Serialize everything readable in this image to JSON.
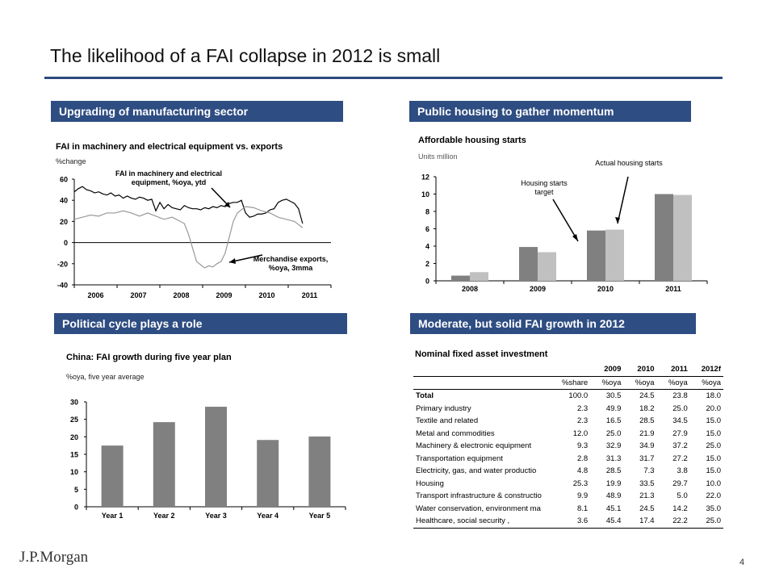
{
  "page": {
    "title": "The likelihood of a FAI collapse in 2012 is small",
    "logo": "J.P.Morgan",
    "page_number": "4"
  },
  "panels": {
    "p1": {
      "banner": "Upgrading of manufacturing sector",
      "title": "FAI in machinery and electrical equipment vs. exports",
      "subtitle": "%change",
      "annotation1_line1": "FAI in machinery and electrical",
      "annotation1_line2": "equipment, %oya, ytd",
      "annotation2_line1": "Merchandise exports,",
      "annotation2_line2": "%oya, 3mma"
    },
    "p2": {
      "banner": "Public housing to gather momentum",
      "title": "Affordable housing starts",
      "subtitle": "Units million",
      "annotation1_line1": "Housing starts",
      "annotation1_line2": "target",
      "annotation2": "Actual housing starts"
    },
    "p3": {
      "banner": "Political cycle plays a role",
      "title": "China:  FAI growth during five year plan",
      "subtitle": "%oya, five year average"
    },
    "p4": {
      "banner": "Moderate, but solid FAI growth in 2012",
      "title": "Nominal fixed asset investment"
    }
  },
  "colors": {
    "banner": "#2e4d82",
    "title_rule": "#2b4a80",
    "dark_bar": "#808080",
    "light_bar": "#c0c0c0",
    "line_dark": "#000000",
    "line_light": "#999999"
  },
  "chart_data": [
    {
      "id": "fai_vs_exports",
      "type": "line",
      "title": "FAI in machinery and electrical equipment vs. exports",
      "ylabel": "%change",
      "ylim": [
        -40,
        60
      ],
      "yticks": [
        "60",
        "40",
        "20",
        "0",
        "-20",
        "-40"
      ],
      "xlim": [
        2006,
        2012
      ],
      "xticks": [
        "2006",
        "2007",
        "2008",
        "2009",
        "2010",
        "2011"
      ],
      "series": [
        {
          "name": "FAI in machinery and electrical equipment, %oya, ytd",
          "x": [
            2006.0,
            2006.1,
            2006.2,
            2006.3,
            2006.4,
            2006.5,
            2006.6,
            2006.7,
            2006.8,
            2006.9,
            2007.0,
            2007.1,
            2007.2,
            2007.3,
            2007.4,
            2007.5,
            2007.6,
            2007.7,
            2007.8,
            2007.9,
            2008.0,
            2008.1,
            2008.2,
            2008.3,
            2008.4,
            2008.5,
            2008.6,
            2008.7,
            2008.8,
            2008.9,
            2009.0,
            2009.1,
            2009.2,
            2009.3,
            2009.4,
            2009.5,
            2009.6,
            2009.7,
            2009.8,
            2009.9,
            2010.0,
            2010.1,
            2010.2,
            2010.3,
            2010.4,
            2010.5,
            2010.6,
            2010.7,
            2010.8,
            2010.9,
            2011.0,
            2011.1,
            2011.2,
            2011.3,
            2011.4,
            2011.5,
            2011.6
          ],
          "values": [
            48,
            51,
            53,
            50,
            49,
            47,
            48,
            46,
            45,
            47,
            44,
            45,
            42,
            44,
            42,
            41,
            43,
            42,
            40,
            41,
            30,
            38,
            32,
            36,
            33,
            32,
            31,
            35,
            33,
            32,
            32,
            31,
            33,
            32,
            34,
            33,
            35,
            34,
            37,
            38,
            38,
            40,
            28,
            24,
            25,
            27,
            27,
            28,
            31,
            32,
            38,
            40,
            41,
            39,
            37,
            32,
            18
          ]
        },
        {
          "name": "Merchandise exports, %oya, 3mma",
          "x": [
            2006.0,
            2006.2,
            2006.4,
            2006.6,
            2006.8,
            2007.0,
            2007.2,
            2007.4,
            2007.6,
            2007.8,
            2008.0,
            2008.2,
            2008.4,
            2008.6,
            2008.7,
            2008.8,
            2008.9,
            2009.0,
            2009.1,
            2009.2,
            2009.3,
            2009.4,
            2009.5,
            2009.6,
            2009.7,
            2009.8,
            2009.9,
            2010.0,
            2010.2,
            2010.4,
            2010.6,
            2010.8,
            2011.0,
            2011.2,
            2011.4,
            2011.6
          ],
          "values": [
            22,
            24,
            26,
            25,
            28,
            28,
            30,
            28,
            25,
            28,
            25,
            22,
            24,
            20,
            18,
            8,
            -5,
            -18,
            -21,
            -24,
            -22,
            -23,
            -20,
            -18,
            -10,
            5,
            20,
            28,
            34,
            33,
            30,
            28,
            24,
            22,
            20,
            14
          ]
        }
      ]
    },
    {
      "id": "affordable_housing",
      "type": "bar",
      "title": "Affordable housing starts",
      "ylabel": "Units million",
      "ylim": [
        0,
        12
      ],
      "yticks": [
        "12",
        "10",
        "8",
        "6",
        "4",
        "2",
        "0"
      ],
      "categories": [
        "2008",
        "2009",
        "2010",
        "2011"
      ],
      "series": [
        {
          "name": "Housing starts target",
          "values": [
            0.6,
            3.9,
            5.8,
            10.0
          ]
        },
        {
          "name": "Actual housing starts",
          "values": [
            1.0,
            3.3,
            5.9,
            9.9
          ]
        }
      ]
    },
    {
      "id": "fai_five_year_plan",
      "type": "bar",
      "title": "China:  FAI growth during five year plan",
      "ylabel": "%oya, five year average",
      "ylim": [
        0,
        30
      ],
      "yticks": [
        "30",
        "25",
        "20",
        "15",
        "10",
        "5",
        "0"
      ],
      "categories": [
        "Year 1",
        "Year 2",
        "Year 3",
        "Year 4",
        "Year 5"
      ],
      "values": [
        17.5,
        24.2,
        28.6,
        19.1,
        20.1
      ]
    },
    {
      "id": "nominal_fai_table",
      "type": "table",
      "title": "Nominal fixed asset investment",
      "columns": [
        "",
        "",
        "2009",
        "2010",
        "2011",
        "2012f"
      ],
      "units": [
        "",
        "%share",
        "%oya",
        "%oya",
        "%oya",
        "%oya"
      ],
      "rows": [
        [
          "Total",
          "100.0",
          "30.5",
          "24.5",
          "23.8",
          "18.0"
        ],
        [
          "Primary industry",
          "2.3",
          "49.9",
          "18.2",
          "25.0",
          "20.0"
        ],
        [
          "Textile and related",
          "2.3",
          "16.5",
          "28.5",
          "34.5",
          "15.0"
        ],
        [
          "Metal and commodities",
          "12.0",
          "25.0",
          "21.9",
          "27.9",
          "15.0"
        ],
        [
          "Machinery & electronic equipment",
          "9.3",
          "32.9",
          "34.9",
          "37.2",
          "25.0"
        ],
        [
          "Transportation equipment",
          "2.8",
          "31.3",
          "31.7",
          "27.2",
          "15.0"
        ],
        [
          "Electricity, gas, and water productio",
          "4.8",
          "28.5",
          "7.3",
          "3.8",
          "15.0"
        ],
        [
          "Housing",
          "25.3",
          "19.9",
          "33.5",
          "29.7",
          "10.0"
        ],
        [
          "Transport infrastructure & constructio",
          "9.9",
          "48.9",
          "21.3",
          "5.0",
          "22.0"
        ],
        [
          "Water conservation, environment ma",
          "8.1",
          "45.1",
          "24.5",
          "14.2",
          "35.0"
        ],
        [
          "Healthcare, social security ,",
          "3.6",
          "45.4",
          "17.4",
          "22.2",
          "25.0"
        ]
      ]
    }
  ]
}
